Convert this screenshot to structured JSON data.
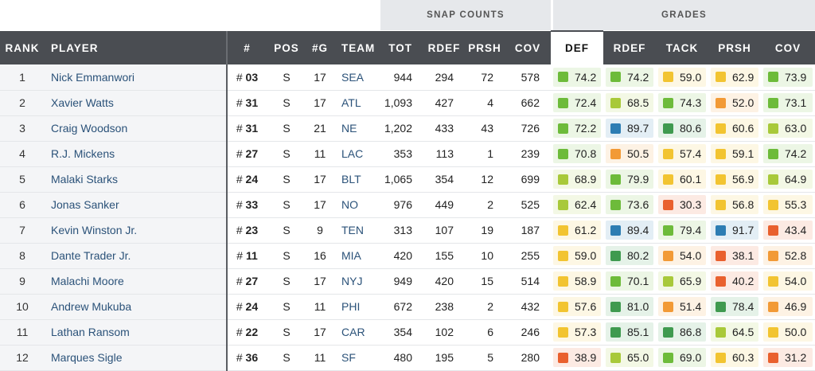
{
  "groups": {
    "snap": "SNAP COUNTS",
    "grades": "GRADES"
  },
  "headers": [
    "RANK",
    "PLAYER",
    "#",
    "POS",
    "#G",
    "TEAM",
    "TOT",
    "RDEF",
    "PRSH",
    "COV",
    "DEF",
    "RDEF",
    "TACK",
    "PRSH",
    "COV"
  ],
  "grade_colors": {
    "elite": "#2d7db3",
    "high": "#3f9a4f",
    "good": "#6dbb3a",
    "above": "#a8c93a",
    "avg": "#f2c431",
    "below": "#f29a36",
    "poor": "#e9602e"
  },
  "rows": [
    {
      "rank": "1",
      "player": "Nick Emmanwori",
      "hash": "# ",
      "num": "03",
      "pos": "S",
      "g": "17",
      "team": "SEA",
      "tot": "944",
      "rdef": "294",
      "prsh": "72",
      "cov": "578",
      "grades": [
        {
          "v": "74.2",
          "t": "good"
        },
        {
          "v": "74.2",
          "t": "good"
        },
        {
          "v": "59.0",
          "t": "avg"
        },
        {
          "v": "62.9",
          "t": "avg"
        },
        {
          "v": "73.9",
          "t": "good"
        }
      ]
    },
    {
      "rank": "2",
      "player": "Xavier Watts",
      "hash": "# ",
      "num": "31",
      "pos": "S",
      "g": "17",
      "team": "ATL",
      "tot": "1,093",
      "rdef": "427",
      "prsh": "4",
      "cov": "662",
      "grades": [
        {
          "v": "72.4",
          "t": "good"
        },
        {
          "v": "68.5",
          "t": "above"
        },
        {
          "v": "74.3",
          "t": "good"
        },
        {
          "v": "52.0",
          "t": "below"
        },
        {
          "v": "73.1",
          "t": "good"
        }
      ]
    },
    {
      "rank": "3",
      "player": "Craig Woodson",
      "hash": "# ",
      "num": "31",
      "pos": "S",
      "g": "21",
      "team": "NE",
      "tot": "1,202",
      "rdef": "433",
      "prsh": "43",
      "cov": "726",
      "grades": [
        {
          "v": "72.2",
          "t": "good"
        },
        {
          "v": "89.7",
          "t": "elite"
        },
        {
          "v": "80.6",
          "t": "high"
        },
        {
          "v": "60.6",
          "t": "avg"
        },
        {
          "v": "63.0",
          "t": "above"
        }
      ]
    },
    {
      "rank": "4",
      "player": "R.J. Mickens",
      "hash": "# ",
      "num": "27",
      "pos": "S",
      "g": "11",
      "team": "LAC",
      "tot": "353",
      "rdef": "113",
      "prsh": "1",
      "cov": "239",
      "grades": [
        {
          "v": "70.8",
          "t": "good"
        },
        {
          "v": "50.5",
          "t": "below"
        },
        {
          "v": "57.4",
          "t": "avg"
        },
        {
          "v": "59.1",
          "t": "avg"
        },
        {
          "v": "74.2",
          "t": "good"
        }
      ]
    },
    {
      "rank": "5",
      "player": "Malaki Starks",
      "hash": "# ",
      "num": "24",
      "pos": "S",
      "g": "17",
      "team": "BLT",
      "tot": "1,065",
      "rdef": "354",
      "prsh": "12",
      "cov": "699",
      "grades": [
        {
          "v": "68.9",
          "t": "above"
        },
        {
          "v": "79.9",
          "t": "good"
        },
        {
          "v": "60.1",
          "t": "avg"
        },
        {
          "v": "56.9",
          "t": "avg"
        },
        {
          "v": "64.9",
          "t": "above"
        }
      ]
    },
    {
      "rank": "6",
      "player": "Jonas Sanker",
      "hash": "# ",
      "num": "33",
      "pos": "S",
      "g": "17",
      "team": "NO",
      "tot": "976",
      "rdef": "449",
      "prsh": "2",
      "cov": "525",
      "grades": [
        {
          "v": "62.4",
          "t": "above"
        },
        {
          "v": "73.6",
          "t": "good"
        },
        {
          "v": "30.3",
          "t": "poor"
        },
        {
          "v": "56.8",
          "t": "avg"
        },
        {
          "v": "55.3",
          "t": "avg"
        }
      ]
    },
    {
      "rank": "7",
      "player": "Kevin Winston Jr.",
      "hash": "# ",
      "num": "23",
      "pos": "S",
      "g": "9",
      "team": "TEN",
      "tot": "313",
      "rdef": "107",
      "prsh": "19",
      "cov": "187",
      "grades": [
        {
          "v": "61.2",
          "t": "avg"
        },
        {
          "v": "89.4",
          "t": "elite"
        },
        {
          "v": "79.4",
          "t": "good"
        },
        {
          "v": "91.7",
          "t": "elite"
        },
        {
          "v": "43.4",
          "t": "poor"
        }
      ]
    },
    {
      "rank": "8",
      "player": "Dante Trader Jr.",
      "hash": "# ",
      "num": "11",
      "pos": "S",
      "g": "16",
      "team": "MIA",
      "tot": "420",
      "rdef": "155",
      "prsh": "10",
      "cov": "255",
      "grades": [
        {
          "v": "59.0",
          "t": "avg"
        },
        {
          "v": "80.2",
          "t": "high"
        },
        {
          "v": "54.0",
          "t": "below"
        },
        {
          "v": "38.1",
          "t": "poor"
        },
        {
          "v": "52.8",
          "t": "below"
        }
      ]
    },
    {
      "rank": "9",
      "player": "Malachi Moore",
      "hash": "# ",
      "num": "27",
      "pos": "S",
      "g": "17",
      "team": "NYJ",
      "tot": "949",
      "rdef": "420",
      "prsh": "15",
      "cov": "514",
      "grades": [
        {
          "v": "58.9",
          "t": "avg"
        },
        {
          "v": "70.1",
          "t": "good"
        },
        {
          "v": "65.9",
          "t": "above"
        },
        {
          "v": "40.2",
          "t": "poor"
        },
        {
          "v": "54.0",
          "t": "avg"
        }
      ]
    },
    {
      "rank": "10",
      "player": "Andrew Mukuba",
      "hash": "# ",
      "num": "24",
      "pos": "S",
      "g": "11",
      "team": "PHI",
      "tot": "672",
      "rdef": "238",
      "prsh": "2",
      "cov": "432",
      "grades": [
        {
          "v": "57.6",
          "t": "avg"
        },
        {
          "v": "81.0",
          "t": "high"
        },
        {
          "v": "51.4",
          "t": "below"
        },
        {
          "v": "78.4",
          "t": "high"
        },
        {
          "v": "46.9",
          "t": "below"
        }
      ]
    },
    {
      "rank": "11",
      "player": "Lathan Ransom",
      "hash": "# ",
      "num": "22",
      "pos": "S",
      "g": "17",
      "team": "CAR",
      "tot": "354",
      "rdef": "102",
      "prsh": "6",
      "cov": "246",
      "grades": [
        {
          "v": "57.3",
          "t": "avg"
        },
        {
          "v": "85.1",
          "t": "high"
        },
        {
          "v": "86.8",
          "t": "high"
        },
        {
          "v": "64.5",
          "t": "above"
        },
        {
          "v": "50.0",
          "t": "avg"
        }
      ]
    },
    {
      "rank": "12",
      "player": "Marques Sigle",
      "hash": "# ",
      "num": "36",
      "pos": "S",
      "g": "11",
      "team": "SF",
      "tot": "480",
      "rdef": "195",
      "prsh": "5",
      "cov": "280",
      "grades": [
        {
          "v": "38.9",
          "t": "poor"
        },
        {
          "v": "65.0",
          "t": "above"
        },
        {
          "v": "69.0",
          "t": "good"
        },
        {
          "v": "60.3",
          "t": "avg"
        },
        {
          "v": "31.2",
          "t": "poor"
        }
      ]
    }
  ]
}
